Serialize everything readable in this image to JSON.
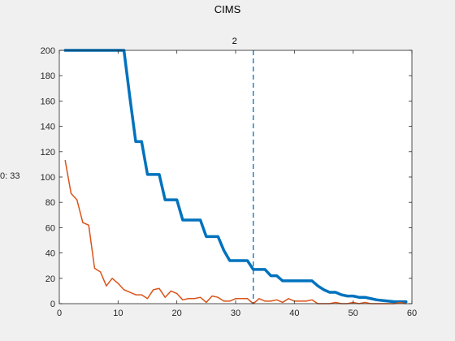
{
  "figure": {
    "title": "CIMS",
    "side_label": "0: 33"
  },
  "chart_data": {
    "type": "line",
    "title": "CIMS",
    "xlabel": "",
    "ylabel": "",
    "xlim": [
      0,
      60
    ],
    "ylim": [
      0,
      200
    ],
    "xticks": [
      0,
      10,
      20,
      30,
      40,
      50,
      60
    ],
    "yticks": [
      0,
      20,
      40,
      60,
      80,
      100,
      120,
      140,
      160,
      180,
      200
    ],
    "grid": false,
    "marker_line": {
      "x": 33,
      "label": "2",
      "color": "#0072BD",
      "style": "dashed"
    },
    "series": [
      {
        "color": "#0072BD",
        "width": 3.5,
        "points": [
          [
            1,
            200
          ],
          [
            2,
            200
          ],
          [
            3,
            200
          ],
          [
            4,
            200
          ],
          [
            5,
            200
          ],
          [
            6,
            200
          ],
          [
            7,
            200
          ],
          [
            8,
            200
          ],
          [
            9,
            200
          ],
          [
            10,
            200
          ],
          [
            11,
            200
          ],
          [
            12,
            163
          ],
          [
            13,
            128
          ],
          [
            14,
            128
          ],
          [
            15,
            102
          ],
          [
            16,
            102
          ],
          [
            17,
            102
          ],
          [
            18,
            82
          ],
          [
            19,
            82
          ],
          [
            20,
            82
          ],
          [
            21,
            66
          ],
          [
            22,
            66
          ],
          [
            23,
            66
          ],
          [
            24,
            66
          ],
          [
            25,
            53
          ],
          [
            26,
            53
          ],
          [
            27,
            53
          ],
          [
            28,
            42
          ],
          [
            29,
            34
          ],
          [
            30,
            34
          ],
          [
            31,
            34
          ],
          [
            32,
            34
          ],
          [
            33,
            27
          ],
          [
            34,
            27
          ],
          [
            35,
            27
          ],
          [
            36,
            22
          ],
          [
            37,
            22
          ],
          [
            38,
            18
          ],
          [
            39,
            18
          ],
          [
            40,
            18
          ],
          [
            41,
            18
          ],
          [
            42,
            18
          ],
          [
            43,
            18
          ],
          [
            44,
            14
          ],
          [
            45,
            11
          ],
          [
            46,
            9
          ],
          [
            47,
            9
          ],
          [
            48,
            7
          ],
          [
            49,
            6
          ],
          [
            50,
            6
          ],
          [
            51,
            5
          ],
          [
            52,
            5
          ],
          [
            53,
            4
          ],
          [
            54,
            3
          ],
          [
            55,
            2.5
          ],
          [
            56,
            2
          ],
          [
            57,
            1.5
          ],
          [
            58,
            1.5
          ],
          [
            59,
            1.5
          ]
        ]
      },
      {
        "color": "#D95319",
        "width": 1.5,
        "points": [
          [
            1,
            113
          ],
          [
            2,
            87
          ],
          [
            3,
            82
          ],
          [
            4,
            64
          ],
          [
            5,
            62
          ],
          [
            6,
            28
          ],
          [
            7,
            25
          ],
          [
            8,
            14
          ],
          [
            9,
            20
          ],
          [
            10,
            16
          ],
          [
            11,
            11
          ],
          [
            12,
            9
          ],
          [
            13,
            7
          ],
          [
            14,
            7
          ],
          [
            15,
            4
          ],
          [
            16,
            11
          ],
          [
            17,
            12
          ],
          [
            18,
            5
          ],
          [
            19,
            10
          ],
          [
            20,
            8
          ],
          [
            21,
            3
          ],
          [
            22,
            4
          ],
          [
            23,
            4
          ],
          [
            24,
            5
          ],
          [
            25,
            1
          ],
          [
            26,
            6
          ],
          [
            27,
            5
          ],
          [
            28,
            2
          ],
          [
            29,
            2
          ],
          [
            30,
            4
          ],
          [
            31,
            4
          ],
          [
            32,
            4
          ],
          [
            33,
            0
          ],
          [
            34,
            4
          ],
          [
            35,
            2
          ],
          [
            36,
            2
          ],
          [
            37,
            3
          ],
          [
            38,
            1
          ],
          [
            39,
            4
          ],
          [
            40,
            2
          ],
          [
            41,
            2
          ],
          [
            42,
            2
          ],
          [
            43,
            3
          ],
          [
            44,
            0
          ],
          [
            45,
            0
          ],
          [
            46,
            0
          ],
          [
            47,
            1
          ],
          [
            48,
            0
          ],
          [
            49,
            0
          ],
          [
            50,
            1
          ],
          [
            51,
            0
          ],
          [
            52,
            1
          ],
          [
            53,
            0
          ],
          [
            54,
            0
          ],
          [
            55,
            0
          ],
          [
            56,
            0
          ],
          [
            57,
            0
          ],
          [
            58,
            1
          ],
          [
            59,
            0
          ]
        ]
      }
    ]
  }
}
